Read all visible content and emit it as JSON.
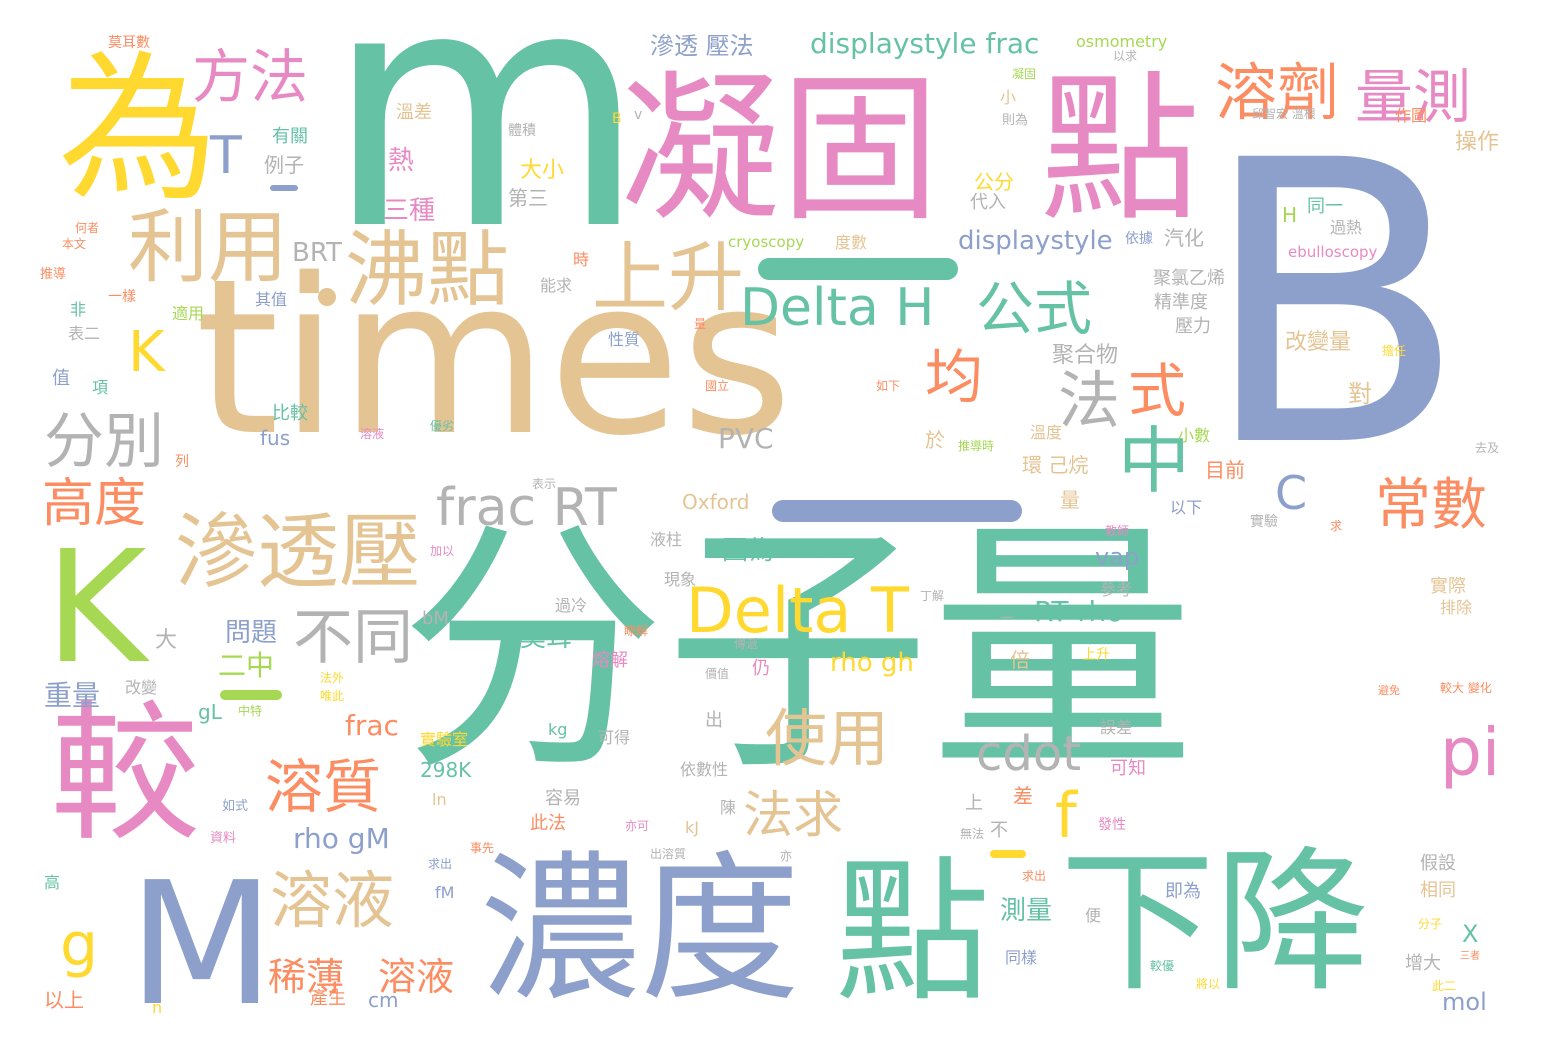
{
  "palette": {
    "green": "#66c2a5",
    "orange": "#fc8d62",
    "blue": "#8da0cb",
    "pink": "#e78ac3",
    "lime": "#a6d854",
    "yellow": "#ffd92f",
    "tan": "#e5c494",
    "gray": "#b3b3b3"
  },
  "words": [
    {
      "text": "分子量",
      "color": "#66c2a5"
    },
    {
      "text": "B",
      "color": "#8da0cb"
    },
    {
      "text": "m",
      "color": "#66c2a5"
    },
    {
      "text": "times",
      "color": "#e5c494"
    },
    {
      "text": "凝固",
      "color": "#e78ac3"
    },
    {
      "text": "點",
      "color": "#e78ac3"
    },
    {
      "text": "為",
      "color": "#ffd92f"
    },
    {
      "text": "較",
      "color": "#e78ac3"
    },
    {
      "text": "M",
      "color": "#8da0cb"
    },
    {
      "text": "K",
      "color": "#a6d854"
    },
    {
      "text": "濃度",
      "color": "#8da0cb"
    },
    {
      "text": "點",
      "color": "#66c2a5"
    },
    {
      "text": "下降",
      "color": "#66c2a5"
    },
    {
      "text": "沸點",
      "color": "#e5c494"
    },
    {
      "text": "上升",
      "color": "#e5c494"
    },
    {
      "text": "利用",
      "color": "#e5c494"
    },
    {
      "text": "滲透壓",
      "color": "#e5c494"
    },
    {
      "text": "溶劑",
      "color": "#fc8d62"
    },
    {
      "text": "量測",
      "color": "#e78ac3"
    },
    {
      "text": "方法",
      "color": "#e78ac3"
    },
    {
      "text": "Delta H",
      "color": "#66c2a5"
    },
    {
      "text": "公式",
      "color": "#66c2a5"
    },
    {
      "text": "Delta T",
      "color": "#ffd92f"
    },
    {
      "text": "frac RT",
      "color": "#b3b3b3"
    },
    {
      "text": "分別",
      "color": "#b3b3b3"
    },
    {
      "text": "高度",
      "color": "#fc8d62"
    },
    {
      "text": "不同",
      "color": "#b3b3b3"
    },
    {
      "text": "使用",
      "color": "#e5c494"
    },
    {
      "text": "溶質",
      "color": "#fc8d62"
    },
    {
      "text": "溶液",
      "color": "#e5c494"
    },
    {
      "text": "cdot",
      "color": "#b3b3b3"
    },
    {
      "text": "常數",
      "color": "#fc8d62"
    },
    {
      "text": "中",
      "color": "#66c2a5"
    },
    {
      "text": "法",
      "color": "#b3b3b3"
    },
    {
      "text": "式",
      "color": "#fc8d62"
    },
    {
      "text": "均",
      "color": "#fc8d62"
    },
    {
      "text": "pi",
      "color": "#e78ac3"
    },
    {
      "text": "法求",
      "color": "#e5c494"
    },
    {
      "text": "f",
      "color": "#ffd92f"
    },
    {
      "text": "g",
      "color": "#ffd92f"
    },
    {
      "text": "K",
      "color": "#ffd92f"
    },
    {
      "text": "T",
      "color": "#8da0cb"
    },
    {
      "text": "C",
      "color": "#8da0cb"
    },
    {
      "text": "稀薄",
      "color": "#fc8d62"
    },
    {
      "text": "溶液",
      "color": "#fc8d62"
    },
    {
      "text": "displaystyle frac",
      "color": "#66c2a5"
    },
    {
      "text": "displaystyle",
      "color": "#8da0cb"
    },
    {
      "text": "滲透 壓法",
      "color": "#8da0cb"
    },
    {
      "text": "osmometry",
      "color": "#a6d854"
    },
    {
      "text": "BRT",
      "color": "#b3b3b3"
    },
    {
      "text": "PVC",
      "color": "#b3b3b3"
    },
    {
      "text": "RT rho",
      "color": "#66c2a5"
    },
    {
      "text": "rho gh",
      "color": "#ffd92f"
    },
    {
      "text": "rho gM",
      "color": "#8da0cb"
    },
    {
      "text": "frac",
      "color": "#fc8d62"
    },
    {
      "text": "Oxford",
      "color": "#e5c494"
    },
    {
      "text": "cryoscopy",
      "color": "#a6d854"
    },
    {
      "text": "ebulloscopy",
      "color": "#e78ac3"
    },
    {
      "text": "問題",
      "color": "#8da0cb"
    },
    {
      "text": "因為",
      "color": "#66c2a5"
    },
    {
      "text": "莫耳",
      "color": "#66c2a5"
    },
    {
      "text": "重量",
      "color": "#8da0cb"
    },
    {
      "text": "二中",
      "color": "#a6d854"
    },
    {
      "text": "298K",
      "color": "#66c2a5"
    },
    {
      "text": "測量",
      "color": "#66c2a5"
    },
    {
      "text": "三種",
      "color": "#e78ac3"
    },
    {
      "text": "熱",
      "color": "#e78ac3"
    },
    {
      "text": "大小",
      "color": "#ffd92f"
    },
    {
      "text": "第三",
      "color": "#b3b3b3"
    },
    {
      "text": "公分",
      "color": "#ffd92f"
    },
    {
      "text": "代入",
      "color": "#b3b3b3"
    },
    {
      "text": "例子",
      "color": "#b3b3b3"
    },
    {
      "text": "有關",
      "color": "#66c2a5"
    },
    {
      "text": "溫差",
      "color": "#e5c494"
    },
    {
      "text": "體積",
      "color": "#b3b3b3"
    },
    {
      "text": "操作",
      "color": "#e5c494"
    },
    {
      "text": "同一",
      "color": "#66c2a5"
    },
    {
      "text": "過熱",
      "color": "#b3b3b3"
    },
    {
      "text": "汽化",
      "color": "#b3b3b3"
    },
    {
      "text": "聚氯乙烯",
      "color": "#b3b3b3"
    },
    {
      "text": "精準度",
      "color": "#b3b3b3"
    },
    {
      "text": "壓力",
      "color": "#b3b3b3"
    },
    {
      "text": "改變量",
      "color": "#e5c494"
    },
    {
      "text": "對",
      "color": "#e5c494"
    },
    {
      "text": "聚合物",
      "color": "#b3b3b3"
    },
    {
      "text": "環 己烷",
      "color": "#e5c494"
    },
    {
      "text": "目前",
      "color": "#fc8d62"
    },
    {
      "text": "溫度",
      "color": "#e5c494"
    },
    {
      "text": "於",
      "color": "#e5c494"
    },
    {
      "text": "量",
      "color": "#e5c494"
    },
    {
      "text": "以下",
      "color": "#8da0cb"
    },
    {
      "text": "實驗",
      "color": "#b3b3b3"
    },
    {
      "text": "vap",
      "color": "#8da0cb"
    },
    {
      "text": "參考",
      "color": "#b3b3b3"
    },
    {
      "text": "實際",
      "color": "#e5c494"
    },
    {
      "text": "排除",
      "color": "#e5c494"
    },
    {
      "text": "過冷",
      "color": "#b3b3b3"
    },
    {
      "text": "液柱",
      "color": "#b3b3b3"
    },
    {
      "text": "現象",
      "color": "#b3b3b3"
    },
    {
      "text": "熔解",
      "color": "#e78ac3"
    },
    {
      "text": "仍",
      "color": "#e78ac3"
    },
    {
      "text": "倍",
      "color": "#e5c494"
    },
    {
      "text": "上升",
      "color": "#ffd92f"
    },
    {
      "text": "誤差",
      "color": "#b3b3b3"
    },
    {
      "text": "可知",
      "color": "#e78ac3"
    },
    {
      "text": "依數性",
      "color": "#b3b3b3"
    },
    {
      "text": "可得",
      "color": "#b3b3b3"
    },
    {
      "text": "出",
      "color": "#b3b3b3"
    },
    {
      "text": "實驗室",
      "color": "#ffd92f"
    },
    {
      "text": "kg",
      "color": "#66c2a5"
    },
    {
      "text": "容易",
      "color": "#b3b3b3"
    },
    {
      "text": "此法",
      "color": "#fc8d62"
    },
    {
      "text": "陳",
      "color": "#b3b3b3"
    },
    {
      "text": "差",
      "color": "#fc8d62"
    },
    {
      "text": "上",
      "color": "#b3b3b3"
    },
    {
      "text": "不",
      "color": "#b3b3b3"
    },
    {
      "text": "假設",
      "color": "#b3b3b3"
    },
    {
      "text": "相同",
      "color": "#e5c494"
    },
    {
      "text": "即為",
      "color": "#8da0cb"
    },
    {
      "text": "增大",
      "color": "#b3b3b3"
    },
    {
      "text": "同樣",
      "color": "#8da0cb"
    },
    {
      "text": "便",
      "color": "#b3b3b3"
    },
    {
      "text": "cm",
      "color": "#8da0cb"
    },
    {
      "text": "mol",
      "color": "#8da0cb"
    },
    {
      "text": "X",
      "color": "#66c2a5"
    },
    {
      "text": "產生",
      "color": "#fc8d62"
    },
    {
      "text": "以上",
      "color": "#fc8d62"
    },
    {
      "text": "n",
      "color": "#ffd92f"
    },
    {
      "text": "高",
      "color": "#66c2a5"
    },
    {
      "text": "fM",
      "color": "#8da0cb"
    },
    {
      "text": "kJ",
      "color": "#e5c494"
    },
    {
      "text": "ln",
      "color": "#e5c494"
    },
    {
      "text": "gL",
      "color": "#66c2a5"
    },
    {
      "text": "bM",
      "color": "#b3b3b3"
    },
    {
      "text": "fus",
      "color": "#8da0cb"
    },
    {
      "text": "比較",
      "color": "#66c2a5"
    },
    {
      "text": "大",
      "color": "#b3b3b3"
    },
    {
      "text": "改變",
      "color": "#b3b3b3"
    },
    {
      "text": "值",
      "color": "#8da0cb"
    },
    {
      "text": "項",
      "color": "#66c2a5"
    },
    {
      "text": "非",
      "color": "#66c2a5"
    },
    {
      "text": "表二",
      "color": "#b3b3b3"
    },
    {
      "text": "適用",
      "color": "#a6d854"
    },
    {
      "text": "其值",
      "color": "#8da0cb"
    },
    {
      "text": "一樣",
      "color": "#fc8d62"
    },
    {
      "text": "能求",
      "color": "#b3b3b3"
    },
    {
      "text": "時",
      "color": "#fc8d62"
    },
    {
      "text": "性質",
      "color": "#8da0cb"
    },
    {
      "text": "度數",
      "color": "#e5c494"
    },
    {
      "text": "依據",
      "color": "#8da0cb"
    },
    {
      "text": "小數",
      "color": "#a6d854"
    },
    {
      "text": "作圖",
      "color": "#fc8d62"
    },
    {
      "text": "小",
      "color": "#e5c494"
    },
    {
      "text": "H",
      "color": "#a6d854"
    },
    {
      "text": "則為",
      "color": "#b3b3b3"
    },
    {
      "text": "凝固",
      "color": "#a6d854"
    },
    {
      "text": "以求",
      "color": "#b3b3b3"
    },
    {
      "text": "莫耳數",
      "color": "#fc8d62"
    },
    {
      "text": "邱智宏 溫根",
      "color": "#b3b3b3"
    },
    {
      "text": "列",
      "color": "#fc8d62"
    },
    {
      "text": "表示",
      "color": "#b3b3b3"
    },
    {
      "text": "加以",
      "color": "#e78ac3"
    },
    {
      "text": "溶液",
      "color": "#e78ac3"
    },
    {
      "text": "優劣",
      "color": "#66c2a5"
    },
    {
      "text": "推導時",
      "color": "#a6d854"
    },
    {
      "text": "教師",
      "color": "#e78ac3"
    },
    {
      "text": "求",
      "color": "#fc8d62"
    },
    {
      "text": "求出",
      "color": "#8da0cb"
    },
    {
      "text": "亦可",
      "color": "#e78ac3"
    },
    {
      "text": "發性",
      "color": "#e78ac3"
    },
    {
      "text": "無法",
      "color": "#b3b3b3"
    },
    {
      "text": "資料",
      "color": "#e78ac3"
    },
    {
      "text": "如式",
      "color": "#8da0cb"
    },
    {
      "text": "推導",
      "color": "#fc8d62"
    },
    {
      "text": "本文",
      "color": "#fc8d62"
    },
    {
      "text": "何者",
      "color": "#fc8d62"
    },
    {
      "text": "法外",
      "color": "#ffd92f"
    },
    {
      "text": "唯此",
      "color": "#ffd92f"
    },
    {
      "text": "中特",
      "color": "#a6d854"
    },
    {
      "text": "較大 變化",
      "color": "#fc8d62"
    },
    {
      "text": "避免",
      "color": "#fc8d62"
    },
    {
      "text": "三者",
      "color": "#fc8d62"
    },
    {
      "text": "分子",
      "color": "#ffd92f"
    },
    {
      "text": "此二",
      "color": "#ffd92f"
    },
    {
      "text": "將以",
      "color": "#ffd92f"
    },
    {
      "text": "較優",
      "color": "#66c2a5"
    },
    {
      "text": "擔任",
      "color": "#ffd92f"
    },
    {
      "text": "去及",
      "color": "#b3b3b3"
    },
    {
      "text": "出溶質",
      "color": "#b3b3b3"
    },
    {
      "text": "亦",
      "color": "#b3b3b3"
    },
    {
      "text": "事先",
      "color": "#fc8d62"
    },
    {
      "text": "求出",
      "color": "#fc8d62"
    },
    {
      "text": "國立",
      "color": "#fc8d62"
    },
    {
      "text": "如下",
      "color": "#fc8d62"
    },
    {
      "text": "量",
      "color": "#fc8d62"
    },
    {
      "text": "傳遞",
      "color": "#b3b3b3"
    },
    {
      "text": "瞭解",
      "color": "#fc8d62"
    },
    {
      "text": "丁解",
      "color": "#b3b3b3"
    },
    {
      "text": "價值",
      "color": "#b3b3b3"
    },
    {
      "text": "B",
      "color": "#ffd92f"
    },
    {
      "text": "v",
      "color": "#b3b3b3"
    },
    {
      "text": "一",
      "color": "#b3b3b3"
    }
  ]
}
